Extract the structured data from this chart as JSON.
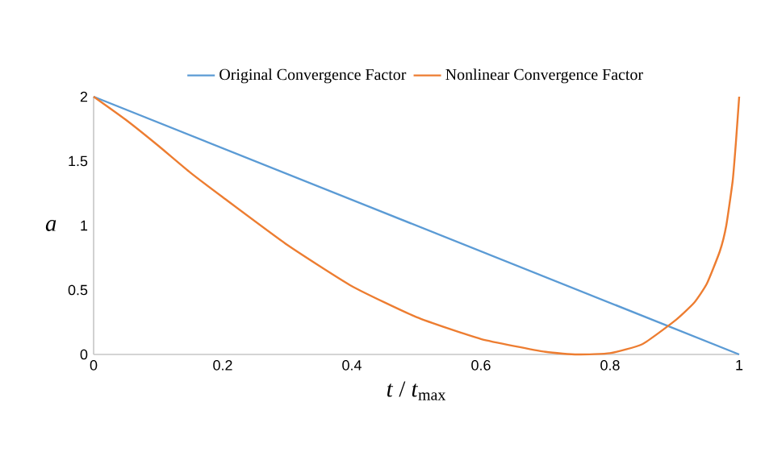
{
  "chart_data": {
    "type": "line",
    "xlabel": "*t* / *t*$_{max}$",
    "ylabel": "a",
    "xlim": [
      0,
      1
    ],
    "xticks": [
      0,
      0.2,
      0.4,
      0.6,
      0.8,
      1
    ],
    "ylim": [
      0,
      2
    ],
    "yticks": [
      0,
      0.5,
      1,
      1.5,
      2
    ],
    "legend": "top",
    "grid": false,
    "marker": "none",
    "line_style": "solid",
    "series": [
      {
        "name": "Original Convergence Factor",
        "color": "#5b9bd5",
        "x": [
          0,
          1
        ],
        "values": [
          2,
          0
        ]
      },
      {
        "name": "Nonlinear Convergence Factor",
        "color": "#ed7d31",
        "x": [
          0,
          0.05,
          0.1,
          0.15,
          0.2,
          0.3,
          0.4,
          0.5,
          0.6,
          0.7,
          0.75,
          0.8,
          0.85,
          0.9,
          0.93,
          0.95,
          0.97,
          0.98,
          0.99,
          0.995,
          1
        ],
        "values": [
          2,
          1.82,
          1.62,
          1.41,
          1.22,
          0.85,
          0.53,
          0.29,
          0.12,
          0.02,
          0,
          0.01,
          0.08,
          0.26,
          0.4,
          0.55,
          0.8,
          1.0,
          1.35,
          1.65,
          2
        ]
      }
    ]
  }
}
